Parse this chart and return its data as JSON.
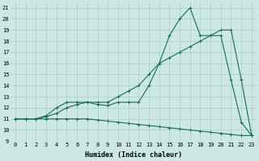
{
  "title": "",
  "xlabel": "Humidex (Indice chaleur)",
  "ylabel": "",
  "bg_color": "#cce8e4",
  "line_color": "#1a6b5a",
  "grid_color": "#aaccc8",
  "xlim": [
    -0.5,
    23.5
  ],
  "ylim": [
    9,
    21.5
  ],
  "yticks": [
    9,
    10,
    11,
    12,
    13,
    14,
    15,
    16,
    17,
    18,
    19,
    20,
    21
  ],
  "xticks": [
    0,
    1,
    2,
    3,
    4,
    5,
    6,
    7,
    8,
    9,
    10,
    11,
    12,
    13,
    14,
    15,
    16,
    17,
    18,
    19,
    20,
    21,
    22,
    23
  ],
  "line1_x": [
    0,
    1,
    2,
    3,
    4,
    5,
    6,
    7,
    8,
    9,
    10,
    11,
    12,
    13,
    14,
    15,
    16,
    17,
    18,
    19,
    20,
    21,
    22,
    23
  ],
  "line1_y": [
    11,
    11,
    11,
    11.3,
    12,
    12.5,
    12.5,
    12.5,
    12.3,
    12.2,
    12.5,
    12.5,
    12.5,
    14,
    16,
    18.5,
    20,
    21,
    18.5,
    18.5,
    18.5,
    14.5,
    10.7,
    9.5
  ],
  "line2_x": [
    0,
    1,
    2,
    3,
    4,
    5,
    6,
    7,
    8,
    9,
    10,
    11,
    12,
    13,
    14,
    15,
    16,
    17,
    18,
    19,
    20,
    21,
    22,
    23
  ],
  "line2_y": [
    11,
    11,
    11,
    11.2,
    11.5,
    12,
    12.3,
    12.5,
    12.5,
    12.5,
    13,
    13.5,
    14,
    15,
    16,
    16.5,
    17,
    17.5,
    18,
    18.5,
    19,
    19,
    14.5,
    9.5
  ],
  "line3_x": [
    0,
    1,
    2,
    3,
    4,
    5,
    6,
    7,
    8,
    9,
    10,
    11,
    12,
    13,
    14,
    15,
    16,
    17,
    18,
    19,
    20,
    21,
    22,
    23
  ],
  "line3_y": [
    11,
    11,
    11,
    11,
    11,
    11,
    11,
    11,
    10.9,
    10.8,
    10.7,
    10.6,
    10.5,
    10.4,
    10.3,
    10.2,
    10.1,
    10.0,
    9.9,
    9.8,
    9.7,
    9.6,
    9.5,
    9.5
  ],
  "marker": "+",
  "markersize": 3,
  "linewidth": 0.8,
  "label_fontsize": 5,
  "xlabel_fontsize": 6
}
